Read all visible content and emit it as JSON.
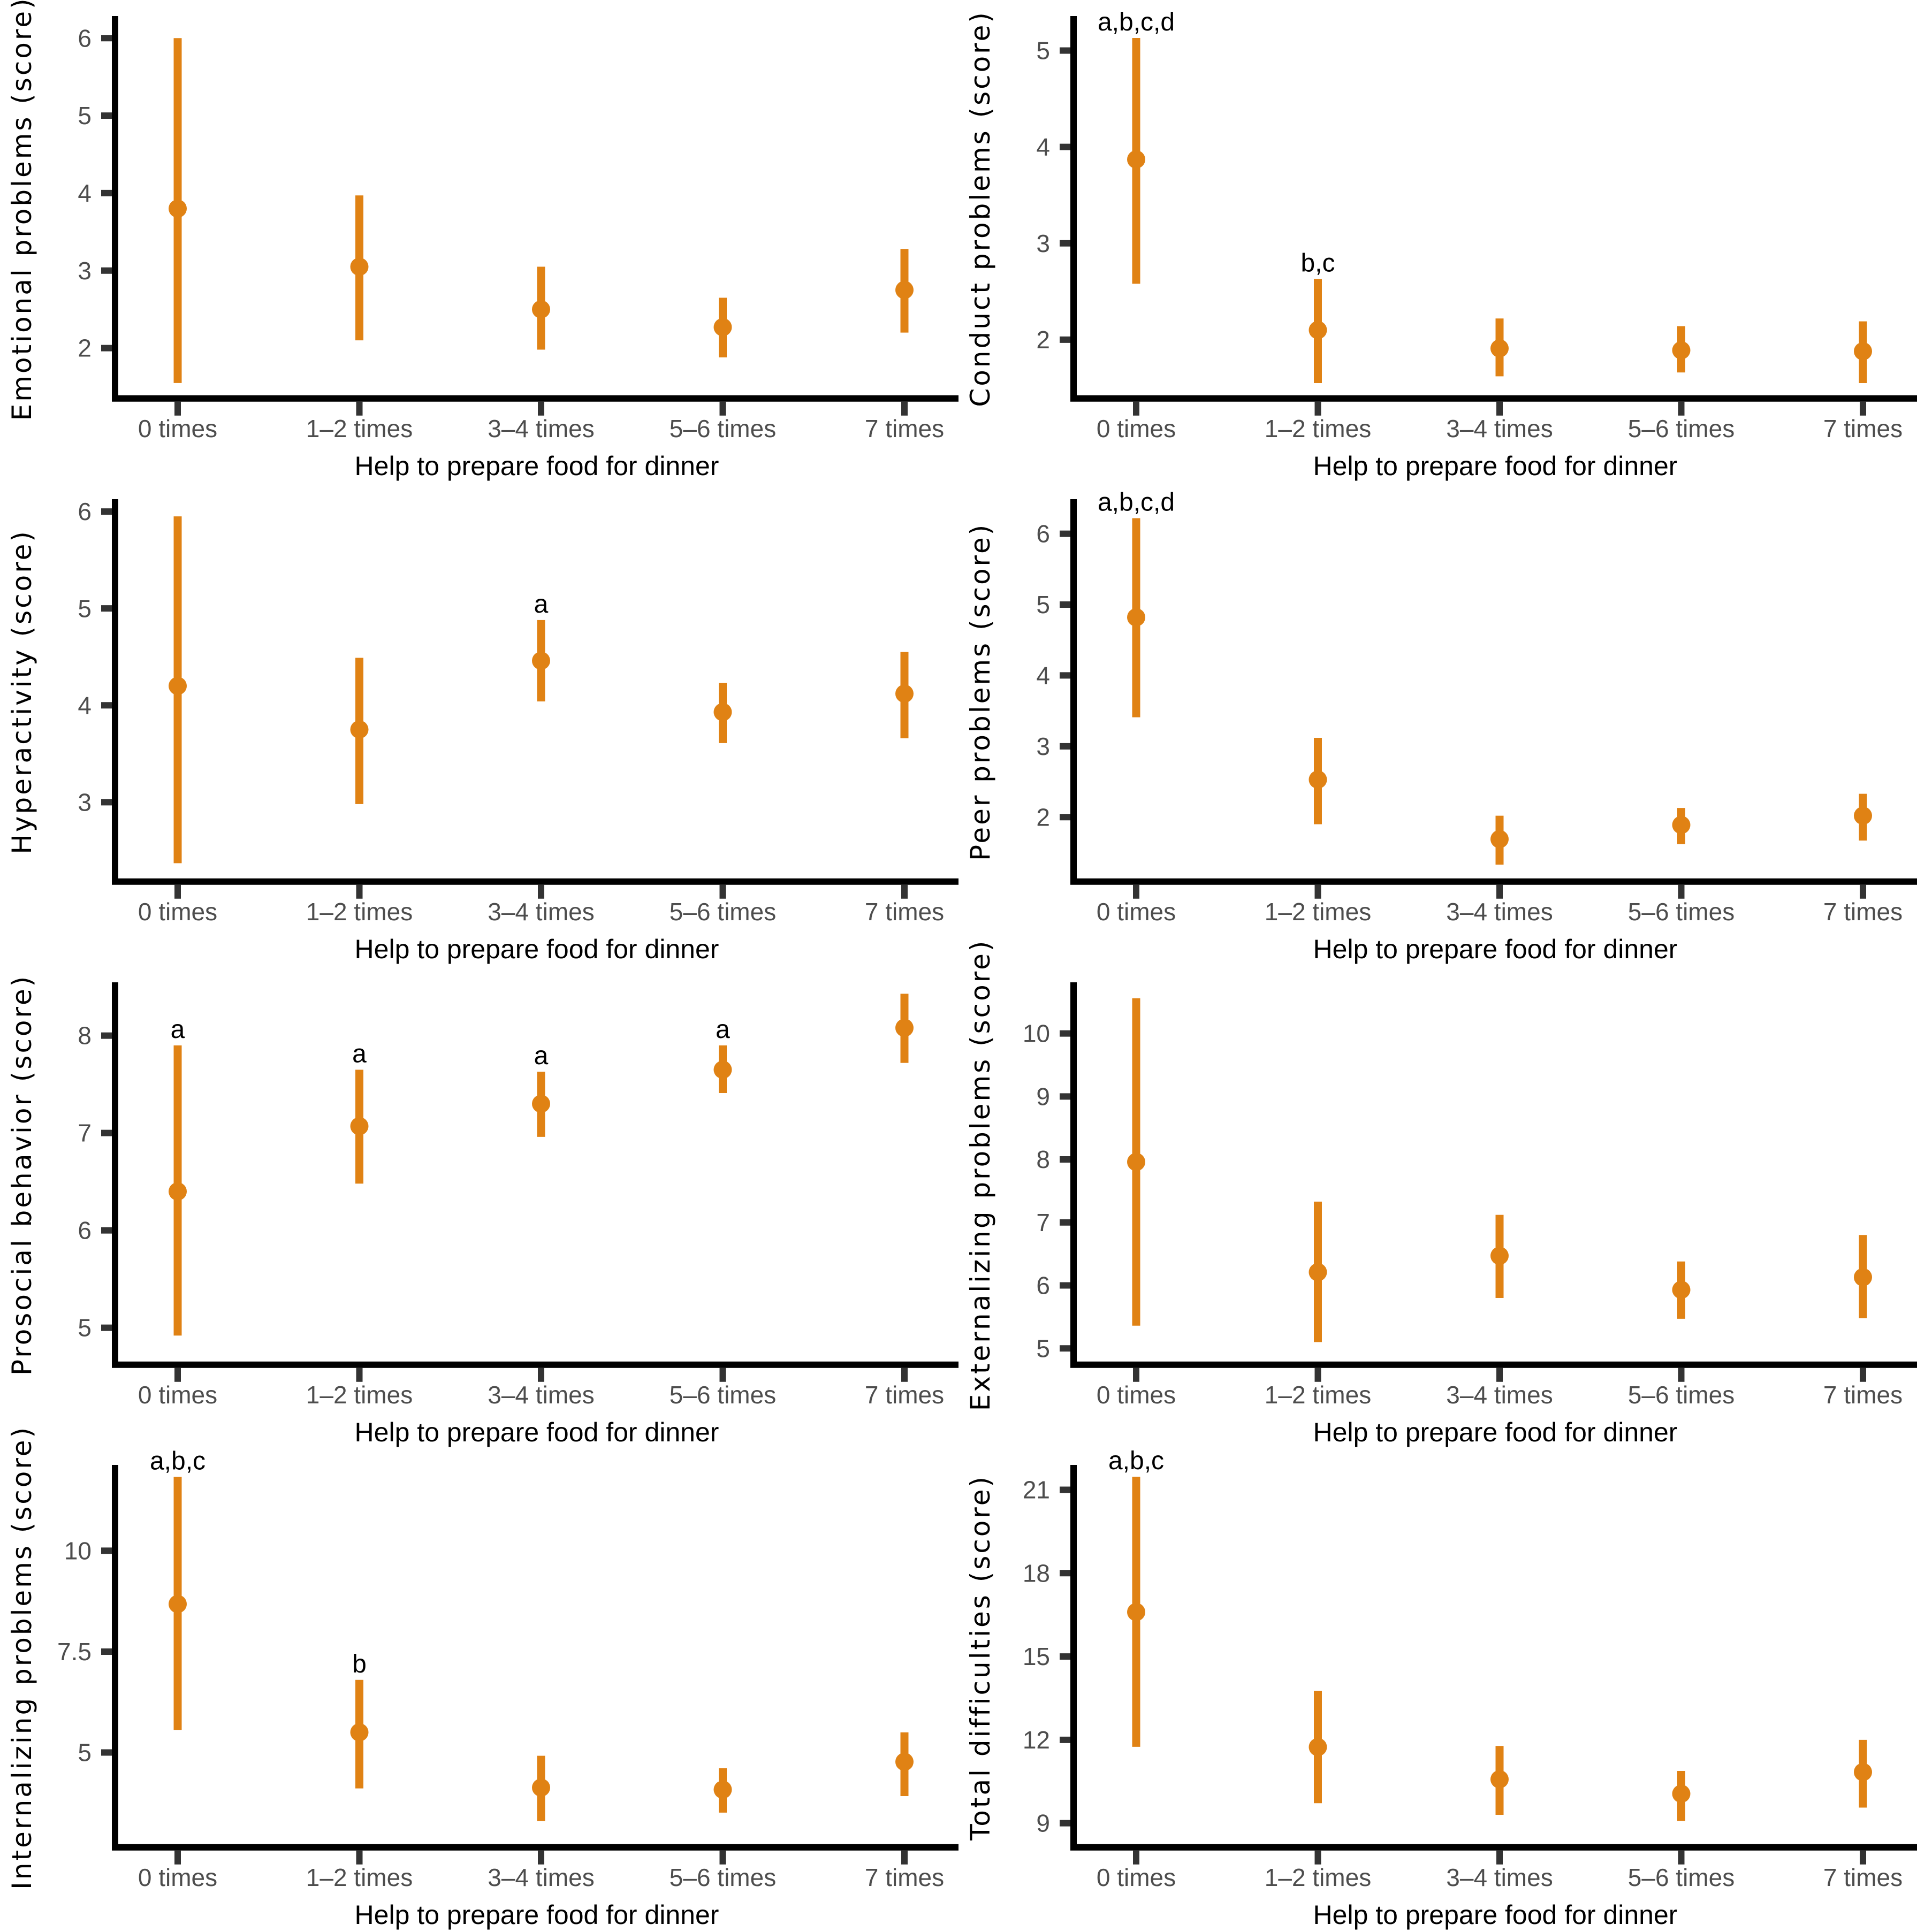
{
  "figure": {
    "layout": "2x4-grid",
    "background": "#ffffff"
  },
  "colors": {
    "point_range": "#E08214",
    "axis_line": "#000000",
    "tick_mark": "#333333",
    "tick_label": "#4D4D4D",
    "axis_title": "#000000",
    "annotation": "#000000"
  },
  "chart_data": [
    {
      "type": "pointrange",
      "panel": "emotional-problems",
      "title": "",
      "ylabel": "Emotional problems (score)",
      "xlabel": "Help to prepare food for dinner",
      "grid": false,
      "legend": "none",
      "categories": [
        "0 times",
        "1–2 times",
        "3–4 times",
        "5–6 times",
        "7 times"
      ],
      "ylim": [
        1.35,
        6.25
      ],
      "yticks": [
        "2",
        "3",
        "4",
        "5",
        "6"
      ],
      "ytick_values": [
        2,
        3,
        4,
        5,
        6
      ],
      "points": [
        {
          "category": "0 times",
          "est": 3.8,
          "lo": 1.55,
          "hi": 6.0,
          "sig": ""
        },
        {
          "category": "1–2 times",
          "est": 3.05,
          "lo": 2.1,
          "hi": 3.97,
          "sig": ""
        },
        {
          "category": "3–4 times",
          "est": 2.5,
          "lo": 1.98,
          "hi": 3.05,
          "sig": ""
        },
        {
          "category": "5–6 times",
          "est": 2.27,
          "lo": 1.88,
          "hi": 2.65,
          "sig": ""
        },
        {
          "category": "7 times",
          "est": 2.75,
          "lo": 2.2,
          "hi": 3.28,
          "sig": ""
        }
      ]
    },
    {
      "type": "pointrange",
      "panel": "conduct-problems",
      "title": "",
      "ylabel": "Conduct problems (score)",
      "xlabel": "Help to prepare food for dinner",
      "grid": false,
      "legend": "none",
      "categories": [
        "0 times",
        "1–2 times",
        "3–4 times",
        "5–6 times",
        "7 times"
      ],
      "ylim": [
        1.39,
        5.33
      ],
      "yticks": [
        "2",
        "3",
        "4",
        "5"
      ],
      "ytick_values": [
        2,
        3,
        4,
        5
      ],
      "points": [
        {
          "category": "0 times",
          "est": 3.87,
          "lo": 2.58,
          "hi": 5.13,
          "sig": "a,b,c,d"
        },
        {
          "category": "1–2 times",
          "est": 2.1,
          "lo": 1.55,
          "hi": 2.63,
          "sig": "b,c"
        },
        {
          "category": "3–4 times",
          "est": 1.91,
          "lo": 1.62,
          "hi": 2.22,
          "sig": ""
        },
        {
          "category": "5–6 times",
          "est": 1.89,
          "lo": 1.66,
          "hi": 2.14,
          "sig": ""
        },
        {
          "category": "7 times",
          "est": 1.88,
          "lo": 1.55,
          "hi": 2.19,
          "sig": ""
        }
      ]
    },
    {
      "type": "pointrange",
      "panel": "hyperactivity",
      "title": "",
      "ylabel": "Hyperactivity (score)",
      "xlabel": "Help to prepare food for dinner",
      "grid": false,
      "legend": "none",
      "categories": [
        "0 times",
        "1–2 times",
        "3–4 times",
        "5–6 times",
        "7 times"
      ],
      "ylim": [
        2.18,
        6.1
      ],
      "yticks": [
        "3",
        "4",
        "5",
        "6"
      ],
      "ytick_values": [
        3,
        4,
        5,
        6
      ],
      "points": [
        {
          "category": "0 times",
          "est": 4.2,
          "lo": 2.37,
          "hi": 5.95,
          "sig": ""
        },
        {
          "category": "1–2 times",
          "est": 3.75,
          "lo": 2.98,
          "hi": 4.49,
          "sig": ""
        },
        {
          "category": "3–4 times",
          "est": 4.46,
          "lo": 4.04,
          "hi": 4.88,
          "sig": "a"
        },
        {
          "category": "5–6 times",
          "est": 3.93,
          "lo": 3.61,
          "hi": 4.23,
          "sig": ""
        },
        {
          "category": "7 times",
          "est": 4.12,
          "lo": 3.66,
          "hi": 4.55,
          "sig": ""
        }
      ]
    },
    {
      "type": "pointrange",
      "panel": "peer-problems",
      "title": "",
      "ylabel": "Peer problems (score)",
      "xlabel": "Help to prepare food for dinner",
      "grid": false,
      "legend": "none",
      "categories": [
        "0 times",
        "1–2 times",
        "3–4 times",
        "5–6 times",
        "7 times"
      ],
      "ylim": [
        1.09,
        6.45
      ],
      "yticks": [
        "2",
        "3",
        "4",
        "5",
        "6"
      ],
      "ytick_values": [
        2,
        3,
        4,
        5,
        6
      ],
      "points": [
        {
          "category": "0 times",
          "est": 4.82,
          "lo": 3.41,
          "hi": 6.22,
          "sig": "a,b,c,d"
        },
        {
          "category": "1–2 times",
          "est": 2.53,
          "lo": 1.9,
          "hi": 3.12,
          "sig": ""
        },
        {
          "category": "3–4 times",
          "est": 1.69,
          "lo": 1.33,
          "hi": 2.02,
          "sig": ""
        },
        {
          "category": "5–6 times",
          "est": 1.89,
          "lo": 1.62,
          "hi": 2.13,
          "sig": ""
        },
        {
          "category": "7 times",
          "est": 2.02,
          "lo": 1.67,
          "hi": 2.33,
          "sig": ""
        }
      ]
    },
    {
      "type": "pointrange",
      "panel": "prosocial-behavior",
      "title": "",
      "ylabel": "Prosocial behavior (score)",
      "xlabel": "Help to prepare food for dinner",
      "grid": false,
      "legend": "none",
      "categories": [
        "0 times",
        "1–2 times",
        "3–4 times",
        "5–6 times",
        "7 times"
      ],
      "ylim": [
        4.62,
        8.52
      ],
      "yticks": [
        "5",
        "6",
        "7",
        "8"
      ],
      "ytick_values": [
        5,
        6,
        7,
        8
      ],
      "points": [
        {
          "category": "0 times",
          "est": 6.4,
          "lo": 4.92,
          "hi": 7.9,
          "sig": "a"
        },
        {
          "category": "1–2 times",
          "est": 7.07,
          "lo": 6.48,
          "hi": 7.65,
          "sig": "a"
        },
        {
          "category": "3–4 times",
          "est": 7.3,
          "lo": 6.96,
          "hi": 7.63,
          "sig": "a"
        },
        {
          "category": "5–6 times",
          "est": 7.65,
          "lo": 7.41,
          "hi": 7.9,
          "sig": "a"
        },
        {
          "category": "7 times",
          "est": 8.08,
          "lo": 7.72,
          "hi": 8.43,
          "sig": ""
        }
      ]
    },
    {
      "type": "pointrange",
      "panel": "externalizing-problems",
      "title": "",
      "ylabel": "Externalizing problems (score)",
      "xlabel": "Help to prepare food for dinner",
      "grid": false,
      "legend": "none",
      "categories": [
        "0 times",
        "1–2 times",
        "3–4 times",
        "5–6 times",
        "7 times"
      ],
      "ylim": [
        4.74,
        10.77
      ],
      "yticks": [
        "5",
        "6",
        "7",
        "8",
        "9",
        "10"
      ],
      "ytick_values": [
        5,
        6,
        7,
        8,
        9,
        10
      ],
      "points": [
        {
          "category": "0 times",
          "est": 7.96,
          "lo": 5.36,
          "hi": 10.56,
          "sig": ""
        },
        {
          "category": "1–2 times",
          "est": 6.21,
          "lo": 5.1,
          "hi": 7.33,
          "sig": ""
        },
        {
          "category": "3–4 times",
          "est": 6.47,
          "lo": 5.8,
          "hi": 7.12,
          "sig": ""
        },
        {
          "category": "5–6 times",
          "est": 5.93,
          "lo": 5.47,
          "hi": 6.38,
          "sig": ""
        },
        {
          "category": "7 times",
          "est": 6.13,
          "lo": 5.48,
          "hi": 6.8,
          "sig": ""
        }
      ]
    },
    {
      "type": "pointrange",
      "panel": "internalizing-problems",
      "title": "",
      "ylabel": "Internalizing problems (score)",
      "xlabel": "Help to prepare food for dinner",
      "grid": false,
      "legend": "none",
      "categories": [
        "0 times",
        "1–2 times",
        "3–4 times",
        "5–6 times",
        "7 times"
      ],
      "ylim": [
        2.65,
        12.06
      ],
      "yticks": [
        "5",
        "7.5",
        "10"
      ],
      "ytick_values": [
        5,
        7.5,
        10
      ],
      "points": [
        {
          "category": "0 times",
          "est": 8.68,
          "lo": 5.56,
          "hi": 11.83,
          "sig": "a,b,c"
        },
        {
          "category": "1–2 times",
          "est": 5.5,
          "lo": 4.11,
          "hi": 6.8,
          "sig": "b"
        },
        {
          "category": "3–4 times",
          "est": 4.13,
          "lo": 3.3,
          "hi": 4.92,
          "sig": ""
        },
        {
          "category": "5–6 times",
          "est": 4.08,
          "lo": 3.51,
          "hi": 4.61,
          "sig": ""
        },
        {
          "category": "7 times",
          "est": 4.77,
          "lo": 3.92,
          "hi": 5.5,
          "sig": ""
        }
      ]
    },
    {
      "type": "pointrange",
      "panel": "total-difficulties",
      "title": "",
      "ylabel": "Total difficulties (score)",
      "xlabel": "Help to prepare food for dinner",
      "grid": false,
      "legend": "none",
      "categories": [
        "0 times",
        "1–2 times",
        "3–4 times",
        "5–6 times",
        "7 times"
      ],
      "ylim": [
        8.13,
        21.8
      ],
      "yticks": [
        "9",
        "12",
        "15",
        "18",
        "21"
      ],
      "ytick_values": [
        9,
        12,
        15,
        18,
        21
      ],
      "points": [
        {
          "category": "0 times",
          "est": 16.6,
          "lo": 11.75,
          "hi": 21.47,
          "sig": "a,b,c"
        },
        {
          "category": "1–2 times",
          "est": 11.74,
          "lo": 9.72,
          "hi": 13.76,
          "sig": ""
        },
        {
          "category": "3–4 times",
          "est": 10.58,
          "lo": 9.3,
          "hi": 11.78,
          "sig": ""
        },
        {
          "category": "5–6 times",
          "est": 10.06,
          "lo": 9.08,
          "hi": 10.88,
          "sig": ""
        },
        {
          "category": "7 times",
          "est": 10.84,
          "lo": 9.56,
          "hi": 12.0,
          "sig": ""
        }
      ]
    }
  ]
}
